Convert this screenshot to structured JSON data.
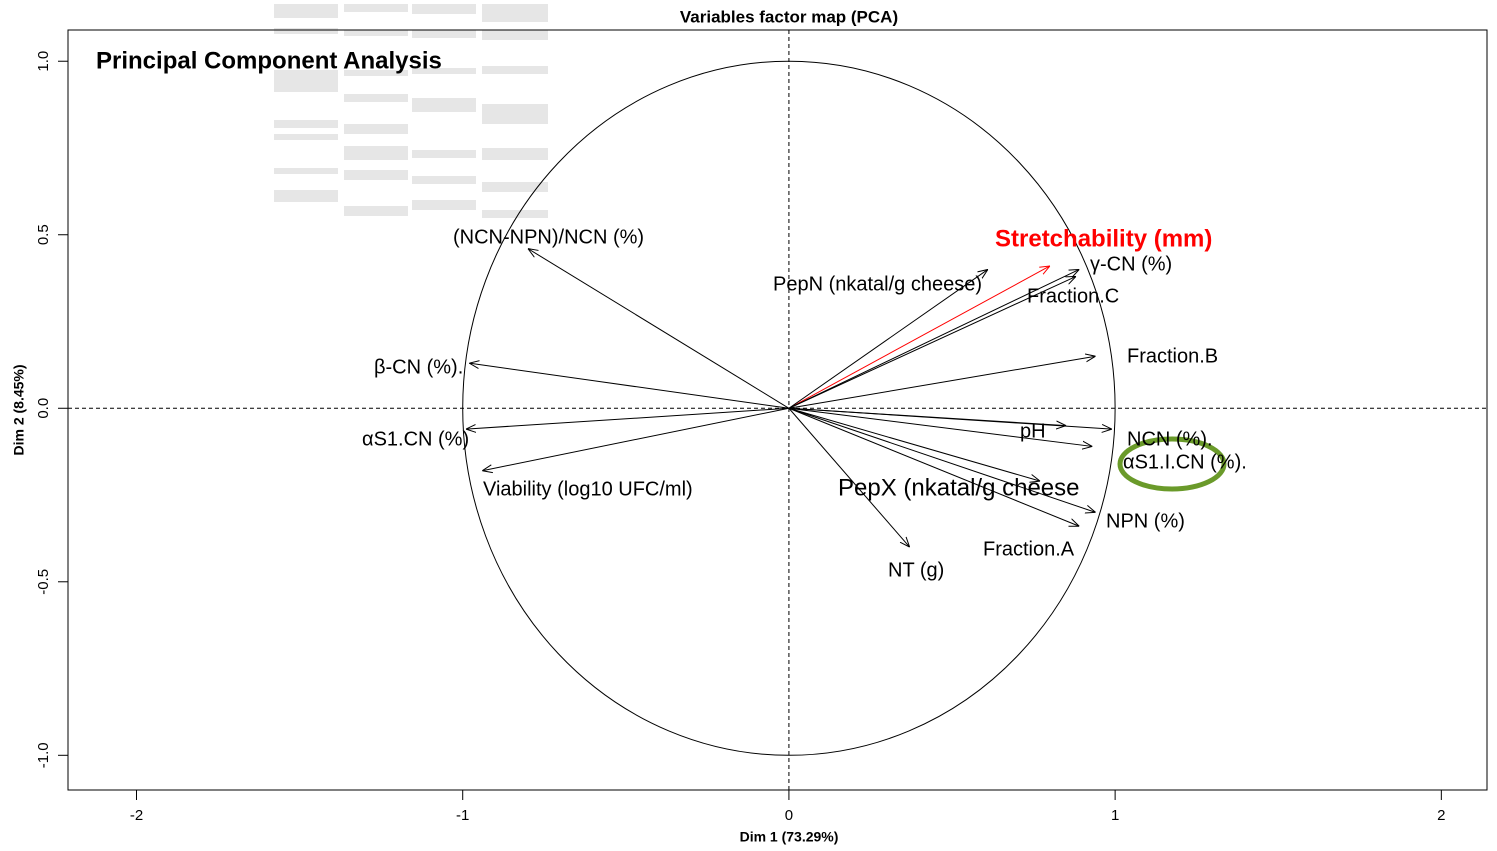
{
  "chart_data": {
    "type": "arrow",
    "title": "Variables factor map (PCA)",
    "overlay_title": "Principal Component Analysis",
    "xlabel": "Dim 1 (73.29%)",
    "ylabel": "Dim 2 (8.45%)",
    "xlim": [
      -2.21,
      2.14
    ],
    "ylim": [
      -1.1,
      1.09
    ],
    "xticks": [
      -2,
      -1,
      0,
      1,
      2
    ],
    "yticks": [
      {
        "value": -1,
        "label": "-1.0"
      },
      {
        "value": -0.5,
        "label": "-0.5"
      },
      {
        "value": 0,
        "label": "0.0"
      },
      {
        "value": 0.5,
        "label": "0.5"
      },
      {
        "value": 1,
        "label": "1.0"
      }
    ],
    "series": [
      {
        "name": "Stretchability (mm)",
        "color": "#ff0000",
        "x": [
          0.8
        ],
        "values": [
          0.41
        ]
      },
      {
        "name": "PepN (nkatal/g cheese)",
        "color": "#000000",
        "x": [
          0.61
        ],
        "values": [
          0.4
        ]
      },
      {
        "name": "γ-CN (%)",
        "color": "#000000",
        "x": [
          0.89
        ],
        "values": [
          0.4
        ]
      },
      {
        "name": "Fraction.C",
        "color": "#000000",
        "x": [
          0.88
        ],
        "values": [
          0.38
        ]
      },
      {
        "name": "Fraction.B",
        "color": "#000000",
        "x": [
          0.94
        ],
        "values": [
          0.15
        ]
      },
      {
        "name": "pH",
        "color": "#000000",
        "x": [
          0.85
        ],
        "values": [
          -0.05
        ]
      },
      {
        "name": "NCN (%).",
        "color": "#000000",
        "x": [
          0.99
        ],
        "values": [
          -0.06
        ]
      },
      {
        "name": "αS1.I.CN (%).",
        "color": "#000000",
        "x": [
          0.93
        ],
        "values": [
          -0.11
        ]
      },
      {
        "name": "PepX (nkatal/g cheese",
        "color": "#000000",
        "x": [
          0.77
        ],
        "values": [
          -0.21
        ]
      },
      {
        "name": "NPN (%)",
        "color": "#000000",
        "x": [
          0.94
        ],
        "values": [
          -0.3
        ]
      },
      {
        "name": "Fraction.A",
        "color": "#000000",
        "x": [
          0.89
        ],
        "values": [
          -0.34
        ]
      },
      {
        "name": "NT (g)",
        "color": "#000000",
        "x": [
          0.37
        ],
        "values": [
          -0.4
        ]
      },
      {
        "name": "(NCN-NPN)/NCN (%)",
        "color": "#000000",
        "x": [
          -0.8
        ],
        "values": [
          0.46
        ]
      },
      {
        "name": "β-CN (%).",
        "color": "#000000",
        "x": [
          -0.98
        ],
        "values": [
          0.13
        ]
      },
      {
        "name": "αS1.CN (%)",
        "color": "#000000",
        "x": [
          -0.99
        ],
        "values": [
          -0.06
        ]
      },
      {
        "name": "Viability (log10 UFC/ml)",
        "color": "#000000",
        "x": [
          -0.94
        ],
        "values": [
          -0.18
        ]
      }
    ]
  }
}
